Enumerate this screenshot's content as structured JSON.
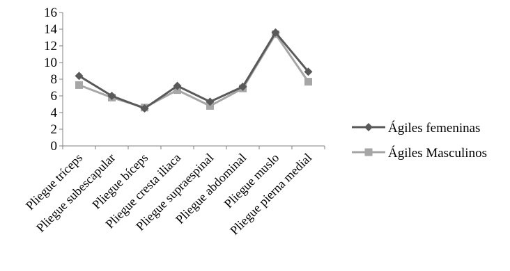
{
  "chart_data": {
    "type": "line",
    "title": "",
    "xlabel": "",
    "ylabel": "",
    "categories": [
      "Pliegue tríceps",
      "Pliegue subescapular",
      "Pliegue bíceps",
      "Pliegue cresta iliaca",
      "Pliegue supraespinal",
      "Pliegue abdominal",
      "Pliegue muslo",
      "Pliegue pierna medial"
    ],
    "ylim": [
      0,
      16
    ],
    "yticks": [
      "0",
      "2",
      "4",
      "6",
      "8",
      "10",
      "12",
      "14",
      "16"
    ],
    "grid": false,
    "legend_position": "right",
    "series": [
      {
        "name": "Ágiles femeninas",
        "marker": "diamond",
        "color": "#595959",
        "values": [
          8.4,
          6.0,
          4.5,
          7.2,
          5.3,
          7.1,
          13.6,
          8.9
        ]
      },
      {
        "name": "Ágiles Masculinos",
        "marker": "square",
        "color": "#a6a6a6",
        "values": [
          7.3,
          5.8,
          4.6,
          6.7,
          4.8,
          6.9,
          13.4,
          7.7
        ]
      }
    ]
  }
}
